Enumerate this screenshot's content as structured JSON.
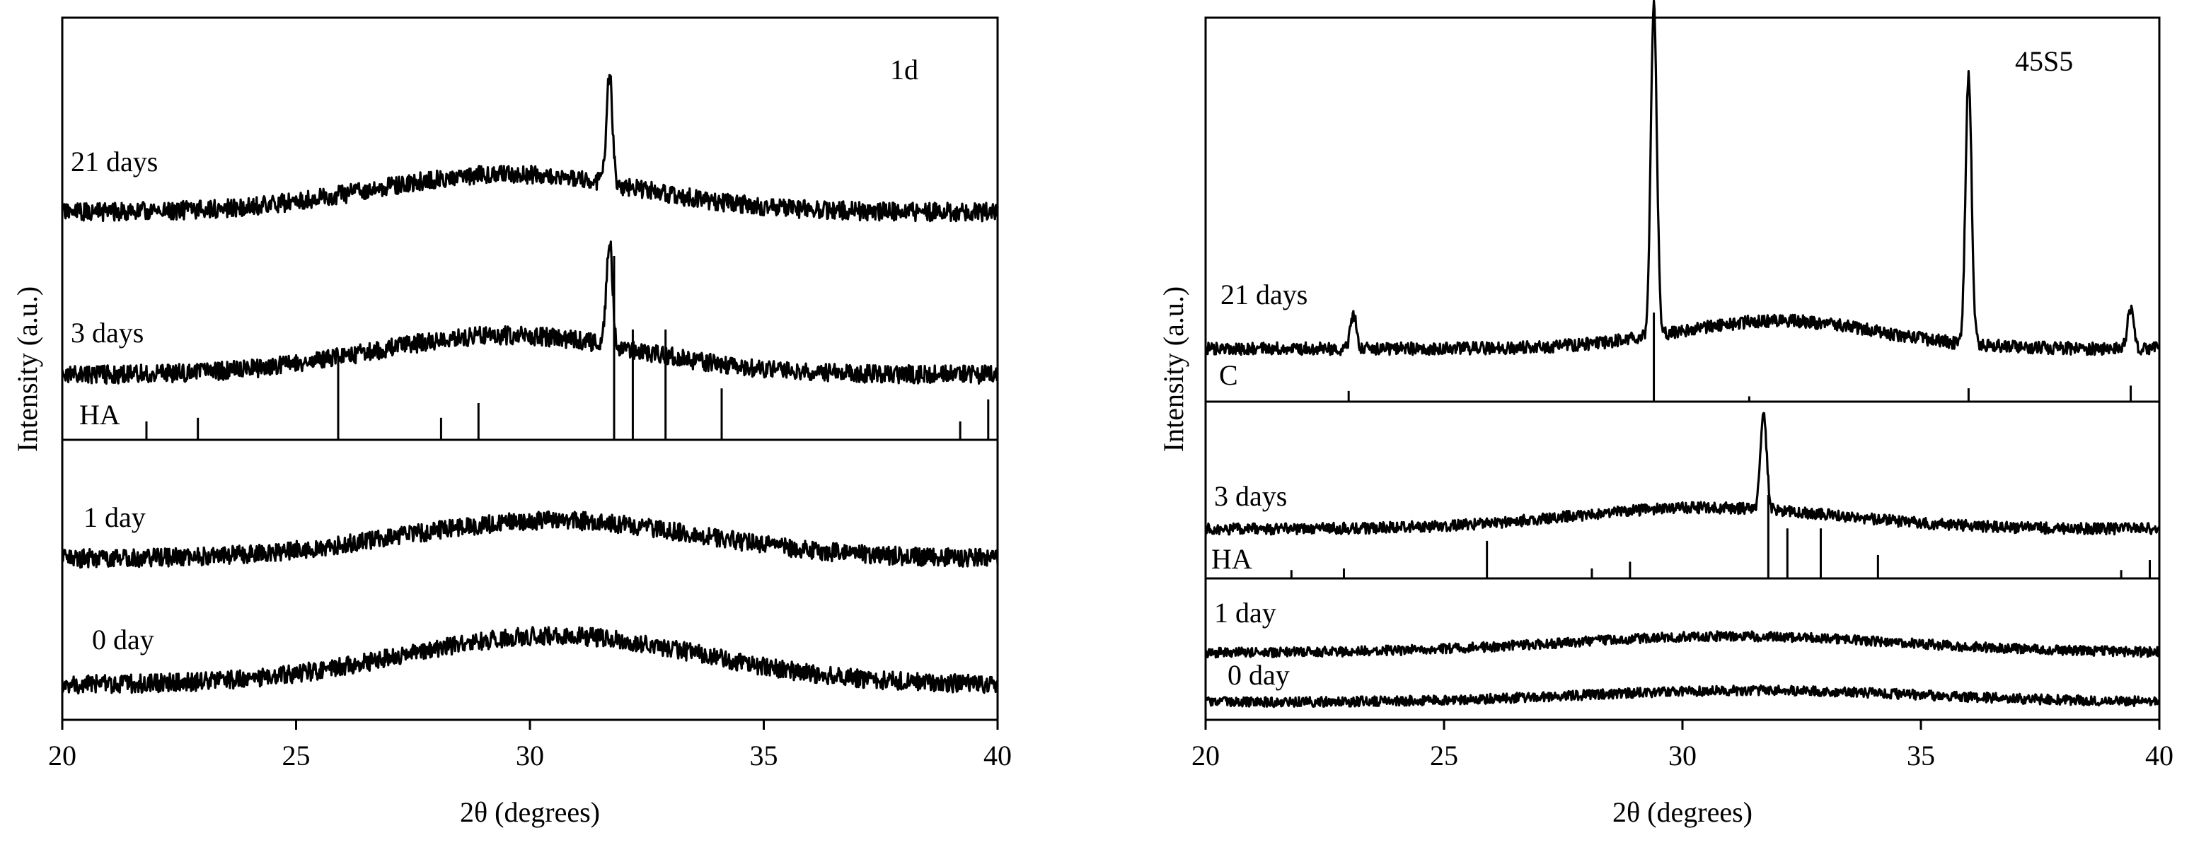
{
  "chart_data": [
    {
      "type": "line",
      "title": "1d",
      "xlabel": "2θ (degrees)",
      "ylabel": "Intensity (a.u.)",
      "xlim": [
        20,
        40
      ],
      "xticks": [
        20,
        25,
        30,
        35,
        40
      ],
      "grid": false,
      "series": [
        {
          "name": "21 days",
          "peaks": [
            {
              "x": 31.7,
              "height": 2.6
            }
          ],
          "hump": {
            "center": 29.5,
            "width": 4,
            "height": 0.9
          }
        },
        {
          "name": "3 days",
          "peaks": [
            {
              "x": 31.7,
              "height": 2.4
            }
          ],
          "hump": {
            "center": 29.5,
            "width": 4,
            "height": 0.9
          }
        },
        {
          "name": "1 day",
          "peaks": [],
          "hump": {
            "center": 30.5,
            "width": 4.5,
            "height": 1.0
          }
        },
        {
          "name": "0 day",
          "peaks": [],
          "hump": {
            "center": 30.5,
            "width": 4.5,
            "height": 1.1
          }
        }
      ],
      "reference": {
        "name": "HA",
        "lines": [
          {
            "x": 21.8,
            "i": 0.1
          },
          {
            "x": 22.9,
            "i": 0.12
          },
          {
            "x": 25.9,
            "i": 0.45
          },
          {
            "x": 28.1,
            "i": 0.12
          },
          {
            "x": 28.9,
            "i": 0.2
          },
          {
            "x": 31.8,
            "i": 1.0
          },
          {
            "x": 32.2,
            "i": 0.6
          },
          {
            "x": 32.9,
            "i": 0.6
          },
          {
            "x": 34.1,
            "i": 0.28
          },
          {
            "x": 39.2,
            "i": 0.1
          },
          {
            "x": 39.8,
            "i": 0.22
          }
        ]
      }
    },
    {
      "type": "line",
      "title": "45S5",
      "xlabel": "2θ (degrees)",
      "ylabel": "Intensity (a.u.)",
      "xlim": [
        20,
        40
      ],
      "xticks": [
        20,
        25,
        30,
        35,
        40
      ],
      "grid": false,
      "series": [
        {
          "name": "21 days",
          "peaks": [
            {
              "x": 23.1,
              "height": 0.5
            },
            {
              "x": 29.4,
              "height": 4.8
            },
            {
              "x": 36.0,
              "height": 3.9
            },
            {
              "x": 39.4,
              "height": 0.6
            }
          ],
          "hump": {
            "center": 32,
            "width": 3,
            "height": 0.4
          }
        },
        {
          "name": "3 days",
          "peaks": [
            {
              "x": 31.7,
              "height": 1.4
            }
          ],
          "hump": {
            "center": 30.5,
            "width": 4,
            "height": 0.3
          }
        },
        {
          "name": "1 day",
          "peaks": [],
          "hump": {
            "center": 31,
            "width": 5,
            "height": 0.4
          }
        },
        {
          "name": "0 day",
          "peaks": [],
          "hump": {
            "center": 31.5,
            "width": 5,
            "height": 0.4
          }
        }
      ],
      "references": [
        {
          "name": "C",
          "lines": [
            {
              "x": 23.0,
              "i": 0.12
            },
            {
              "x": 29.4,
              "i": 1.0
            },
            {
              "x": 31.4,
              "i": 0.06
            },
            {
              "x": 36.0,
              "i": 0.15
            },
            {
              "x": 39.4,
              "i": 0.18
            }
          ]
        },
        {
          "name": "HA",
          "lines": [
            {
              "x": 21.8,
              "i": 0.1
            },
            {
              "x": 22.9,
              "i": 0.12
            },
            {
              "x": 25.9,
              "i": 0.45
            },
            {
              "x": 28.1,
              "i": 0.12
            },
            {
              "x": 28.9,
              "i": 0.2
            },
            {
              "x": 31.8,
              "i": 1.0
            },
            {
              "x": 32.2,
              "i": 0.6
            },
            {
              "x": 32.9,
              "i": 0.6
            },
            {
              "x": 34.1,
              "i": 0.28
            },
            {
              "x": 39.2,
              "i": 0.1
            },
            {
              "x": 39.8,
              "i": 0.22
            }
          ]
        }
      ]
    }
  ]
}
